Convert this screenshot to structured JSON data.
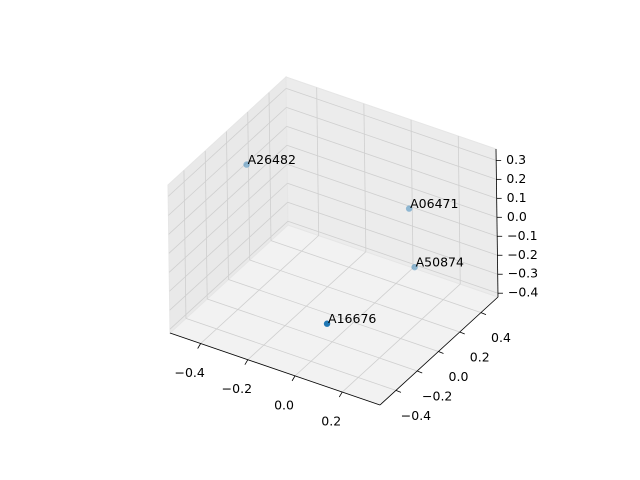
{
  "chart_data": {
    "type": "scatter3d",
    "labels": [
      "A26482",
      "A06471",
      "A50874",
      "A16676"
    ],
    "x": [
      -0.46,
      0.06,
      0.08,
      0.13
    ],
    "y": [
      0.03,
      0.4,
      0.4,
      -0.53
    ],
    "z": [
      0.2,
      0.0,
      -0.3,
      -0.1
    ],
    "color": "#1f77b4",
    "xlim": [
      -0.53,
      0.36
    ],
    "ylim": [
      -0.55,
      0.56
    ],
    "zlim": [
      -0.42,
      0.36
    ],
    "xticks": [
      {
        "value": -0.4,
        "label": "−0.4"
      },
      {
        "value": -0.2,
        "label": "−0.2"
      },
      {
        "value": 0,
        "label": "0.0"
      },
      0.2
    ],
    "yticks": [
      {
        "value": -0.4,
        "label": "−0.4"
      },
      {
        "value": -0.2,
        "label": "−0.2"
      },
      {
        "value": 0,
        "label": "0.0"
      },
      0.2,
      0.4
    ],
    "zticks": [
      {
        "value": -0.4,
        "label": "−0.4"
      },
      {
        "value": -0.3,
        "label": "−0.3"
      },
      {
        "value": -0.2,
        "label": "−0.2"
      },
      {
        "value": -0.1,
        "label": "−0.1"
      },
      {
        "value": 0,
        "label": "0.0"
      },
      0.1,
      0.2,
      0.3
    ],
    "grid": true
  }
}
